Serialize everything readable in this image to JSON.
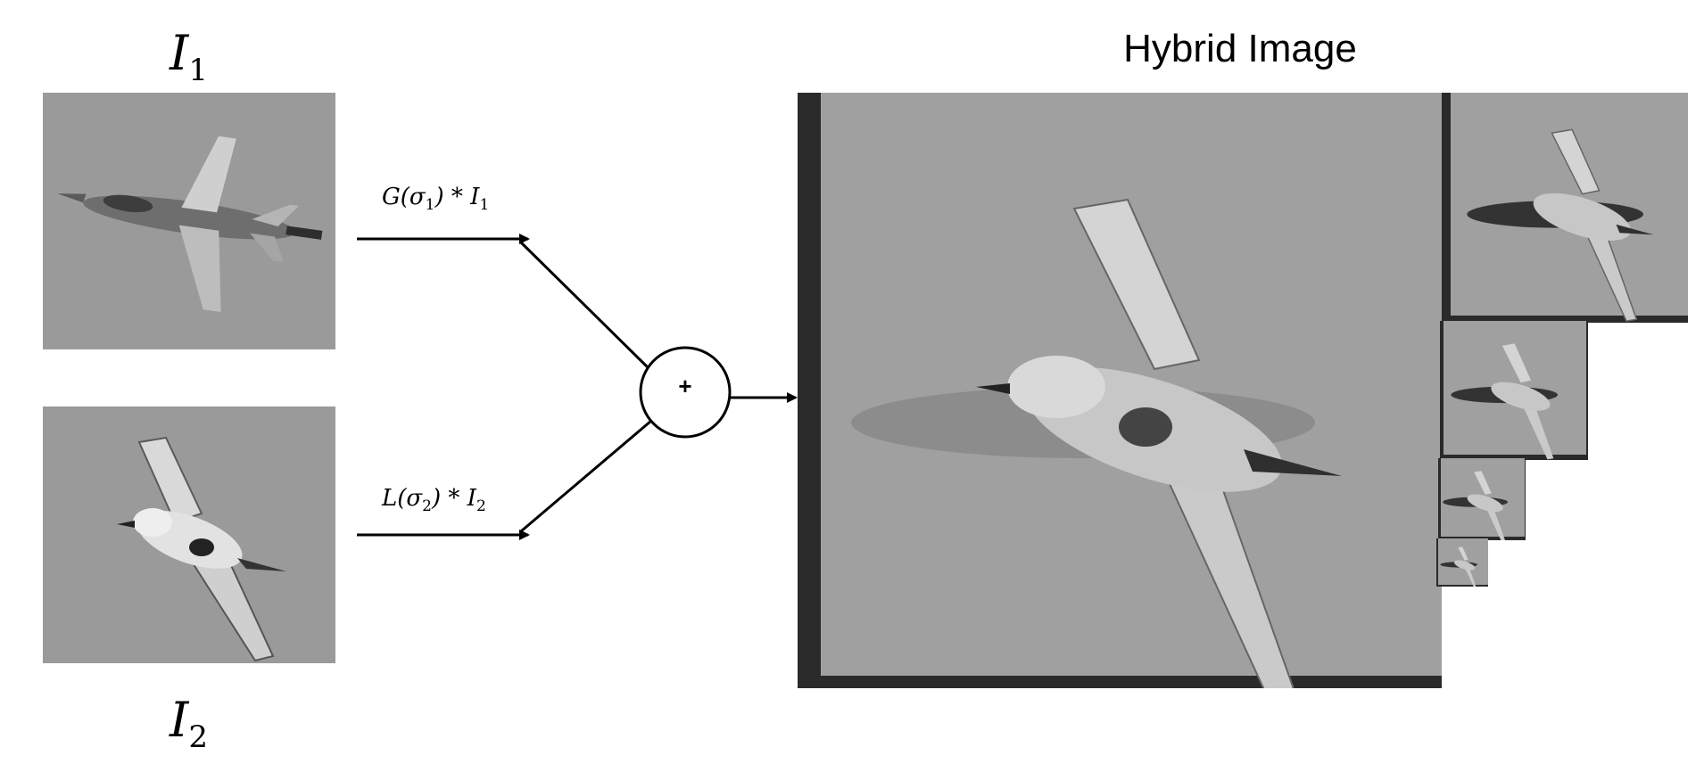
{
  "title": "Hybrid Image",
  "input1": {
    "symbol": "I",
    "subscript": "1"
  },
  "input2": {
    "symbol": "I",
    "subscript": "2"
  },
  "lowpass_formula": {
    "fn": "G(σ",
    "sub": "1",
    "rest": ") * I",
    "sub2": "1"
  },
  "highpass_formula": {
    "fn": "L(σ",
    "sub": "2",
    "rest": ") * I",
    "sub2": "2"
  },
  "operator": "+",
  "colors": {
    "background": "#9a9a9a",
    "frame": "#2a2a2a",
    "line": "#000000"
  },
  "icons": [
    "fighter-jet-image",
    "seagull-image",
    "hybrid-bird-image"
  ]
}
